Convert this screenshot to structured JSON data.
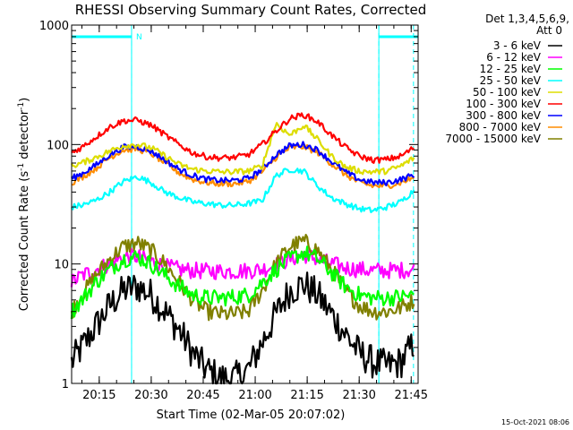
{
  "chart_data": {
    "type": "line",
    "title": "RHESSI Observing Summary Count Rates, Corrected",
    "xlabel": "Start Time (02-Mar-05 20:07:02)",
    "ylabel_main": "Corrected Count Rate (s",
    "ylabel_sup1": "-1",
    "ylabel_mid": " detector",
    "ylabel_sup2": "-1",
    "ylabel_end": ")",
    "yscale": "log",
    "ylim": [
      1,
      1000
    ],
    "xlim": [
      "20:07:02",
      "21:47:00"
    ],
    "xticks": [
      "20:15",
      "20:30",
      "20:45",
      "21:00",
      "21:15",
      "21:30",
      "21:45"
    ],
    "yticks": [
      "1",
      "10",
      "100",
      "1000"
    ],
    "timestamp": "15-Oct-2021 08:06",
    "legend_header": [
      "Det 1,3,4,5,6,9,",
      "Att 0"
    ],
    "flag_label": "N",
    "night_intervals": [
      {
        "start": "20:07:02",
        "end": "20:24:20"
      },
      {
        "start": "21:35:40",
        "end": "21:47:00"
      }
    ],
    "markers": [
      "20:24:20",
      "21:35:40",
      "21:45:40"
    ],
    "colors": {
      "background": "#ffffff",
      "axes": "#000000",
      "flag": "#00ffff"
    },
    "series": [
      {
        "name": "3 - 6 keV",
        "color": "#000000",
        "time": [
          "20:07",
          "20:10",
          "20:14",
          "20:18",
          "20:22",
          "20:26",
          "20:30",
          "20:34",
          "20:38",
          "20:42",
          "20:46",
          "20:50",
          "20:54",
          "20:58",
          "21:02",
          "21:06",
          "21:10",
          "21:14",
          "21:18",
          "21:22",
          "21:26",
          "21:30",
          "21:34",
          "21:38",
          "21:42",
          "21:46"
        ],
        "values": [
          1.5,
          2.0,
          3.0,
          4.5,
          6.0,
          6.5,
          5.5,
          4.0,
          2.8,
          1.8,
          1.3,
          1.1,
          1.1,
          1.3,
          2.2,
          3.8,
          6.0,
          6.8,
          5.5,
          3.8,
          2.6,
          1.8,
          1.5,
          1.4,
          1.5,
          2.2
        ]
      },
      {
        "name": "6 - 12 keV",
        "color": "#ff00ff",
        "time": [
          "20:07",
          "20:10",
          "20:14",
          "20:18",
          "20:22",
          "20:26",
          "20:30",
          "20:34",
          "20:38",
          "20:42",
          "20:46",
          "20:50",
          "20:54",
          "20:58",
          "21:02",
          "21:06",
          "21:10",
          "21:14",
          "21:18",
          "21:22",
          "21:26",
          "21:30",
          "21:34",
          "21:38",
          "21:42",
          "21:46"
        ],
        "values": [
          7,
          8,
          9,
          10,
          11.5,
          11.5,
          10.5,
          9.5,
          9,
          8.8,
          8.7,
          8.7,
          8.7,
          8.8,
          9,
          9.8,
          11,
          12,
          11,
          10,
          9.3,
          9,
          8.8,
          8.8,
          8.9,
          9
        ]
      },
      {
        "name": "12 - 25 keV",
        "color": "#00ff00",
        "time": [
          "20:07",
          "20:10",
          "20:14",
          "20:18",
          "20:22",
          "20:26",
          "20:30",
          "20:34",
          "20:38",
          "20:42",
          "20:46",
          "20:50",
          "20:54",
          "20:58",
          "21:02",
          "21:06",
          "21:10",
          "21:14",
          "21:18",
          "21:22",
          "21:26",
          "21:30",
          "21:34",
          "21:38",
          "21:42",
          "21:46"
        ],
        "values": [
          4,
          5,
          7,
          9,
          11,
          11.5,
          10,
          8,
          6.5,
          5.5,
          5.2,
          5.2,
          5.3,
          5.5,
          7,
          9,
          11,
          12.5,
          11,
          8.5,
          6.5,
          5.5,
          5.2,
          5.2,
          5.3,
          5.5
        ]
      },
      {
        "name": "25 - 50 keV",
        "color": "#00ffff",
        "time": [
          "20:07",
          "20:10",
          "20:14",
          "20:18",
          "20:22",
          "20:26",
          "20:30",
          "20:34",
          "20:38",
          "20:42",
          "20:46",
          "20:50",
          "20:54",
          "20:58",
          "21:02",
          "21:06",
          "21:10",
          "21:14",
          "21:18",
          "21:22",
          "21:26",
          "21:30",
          "21:34",
          "21:38",
          "21:42",
          "21:46"
        ],
        "values": [
          30,
          31,
          34,
          40,
          49,
          54,
          48,
          40,
          36,
          33,
          32,
          31,
          31,
          32,
          34,
          55,
          62,
          60,
          45,
          36,
          32,
          29,
          28,
          30,
          33,
          42
        ]
      },
      {
        "name": "50 - 100 keV",
        "color": "#dddd00",
        "time": [
          "20:07",
          "20:10",
          "20:14",
          "20:18",
          "20:22",
          "20:26",
          "20:30",
          "20:34",
          "20:38",
          "20:42",
          "20:46",
          "20:50",
          "20:54",
          "20:58",
          "21:02",
          "21:06",
          "21:10",
          "21:14",
          "21:18",
          "21:22",
          "21:26",
          "21:30",
          "21:34",
          "21:38",
          "21:42",
          "21:46"
        ],
        "values": [
          66,
          70,
          78,
          88,
          98,
          100,
          94,
          80,
          68,
          62,
          60,
          59,
          59,
          60,
          66,
          150,
          120,
          145,
          110,
          80,
          65,
          60,
          59,
          60,
          66,
          78
        ]
      },
      {
        "name": "100 - 300 keV",
        "color": "#ff0000",
        "time": [
          "20:07",
          "20:10",
          "20:14",
          "20:18",
          "20:22",
          "20:26",
          "20:30",
          "20:34",
          "20:38",
          "20:42",
          "20:46",
          "20:50",
          "20:54",
          "20:58",
          "21:02",
          "21:06",
          "21:10",
          "21:14",
          "21:18",
          "21:22",
          "21:26",
          "21:30",
          "21:34",
          "21:38",
          "21:42",
          "21:46"
        ],
        "values": [
          85,
          95,
          115,
          140,
          158,
          160,
          145,
          120,
          100,
          85,
          79,
          77,
          78,
          82,
          100,
          130,
          165,
          178,
          155,
          120,
          95,
          80,
          74,
          75,
          80,
          95
        ]
      },
      {
        "name": "300 - 800 keV",
        "color": "#0000ff",
        "time": [
          "20:07",
          "20:10",
          "20:14",
          "20:18",
          "20:22",
          "20:26",
          "20:30",
          "20:34",
          "20:38",
          "20:42",
          "20:46",
          "20:50",
          "20:54",
          "20:58",
          "21:02",
          "21:06",
          "21:10",
          "21:14",
          "21:18",
          "21:22",
          "21:26",
          "21:30",
          "21:34",
          "21:38",
          "21:42",
          "21:46"
        ],
        "values": [
          52,
          57,
          67,
          82,
          95,
          96,
          88,
          74,
          62,
          55,
          51,
          50,
          50,
          52,
          62,
          82,
          98,
          100,
          90,
          72,
          59,
          51,
          48,
          48,
          51,
          56
        ]
      },
      {
        "name": "800 - 7000 keV",
        "color": "#ff8c00",
        "time": [
          "20:07",
          "20:10",
          "20:14",
          "20:18",
          "20:22",
          "20:26",
          "20:30",
          "20:34",
          "20:38",
          "20:42",
          "20:46",
          "20:50",
          "20:54",
          "20:58",
          "21:02",
          "21:06",
          "21:10",
          "21:14",
          "21:18",
          "21:22",
          "21:26",
          "21:30",
          "21:34",
          "21:38",
          "21:42",
          "21:46"
        ],
        "values": [
          48,
          53,
          63,
          78,
          90,
          92,
          84,
          70,
          58,
          51,
          48,
          47,
          47,
          49,
          59,
          78,
          94,
          96,
          86,
          69,
          56,
          48,
          45,
          45,
          48,
          53
        ]
      },
      {
        "name": "7000 - 15000 keV",
        "color": "#808000",
        "time": [
          "20:07",
          "20:10",
          "20:14",
          "20:18",
          "20:22",
          "20:26",
          "20:30",
          "20:34",
          "20:38",
          "20:42",
          "20:46",
          "20:50",
          "20:54",
          "20:58",
          "21:02",
          "21:06",
          "21:10",
          "21:14",
          "21:18",
          "21:22",
          "21:26",
          "21:30",
          "21:34",
          "21:38",
          "21:42",
          "21:46"
        ],
        "values": [
          4,
          5.5,
          8,
          11,
          14,
          15,
          13,
          10,
          7,
          5,
          4,
          3.8,
          3.8,
          4,
          6,
          10,
          14,
          15.5,
          13,
          9,
          6,
          4.5,
          4,
          4,
          4.3,
          5
        ]
      }
    ]
  }
}
